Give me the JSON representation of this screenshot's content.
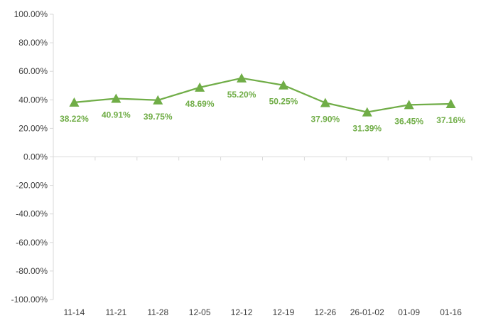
{
  "chart_data": {
    "type": "line",
    "title": "",
    "xlabel": "",
    "ylabel": "",
    "categories": [
      "11-14",
      "11-21",
      "11-28",
      "12-05",
      "12-12",
      "12-19",
      "12-26",
      "26-01-02",
      "01-09",
      "01-16"
    ],
    "series": [
      {
        "values": [
          38.22,
          40.91,
          39.75,
          48.69,
          55.2,
          50.25,
          37.9,
          31.39,
          36.45,
          37.16
        ],
        "labels": [
          "38.22%",
          "40.91%",
          "39.75%",
          "48.69%",
          "55.20%",
          "50.25%",
          "37.90%",
          "31.39%",
          "36.45%",
          "37.16%"
        ],
        "color": "#70AD47",
        "marker": "triangle"
      }
    ],
    "ylim": [
      -100,
      100
    ],
    "yticks": [
      100,
      80,
      60,
      40,
      20,
      0,
      -20,
      -40,
      -60,
      -80,
      -100
    ],
    "ytick_labels": [
      "100.00%",
      "80.00%",
      "60.00%",
      "40.00%",
      "20.00%",
      "0.00%",
      "-20.00%",
      "-40.00%",
      "-60.00%",
      "-80.00%",
      "-100.00%"
    ],
    "grid": false,
    "legend": "none",
    "colors": {
      "series": "#70AD47",
      "axis": "#D9D9D9",
      "tick_text": "#404040"
    }
  }
}
